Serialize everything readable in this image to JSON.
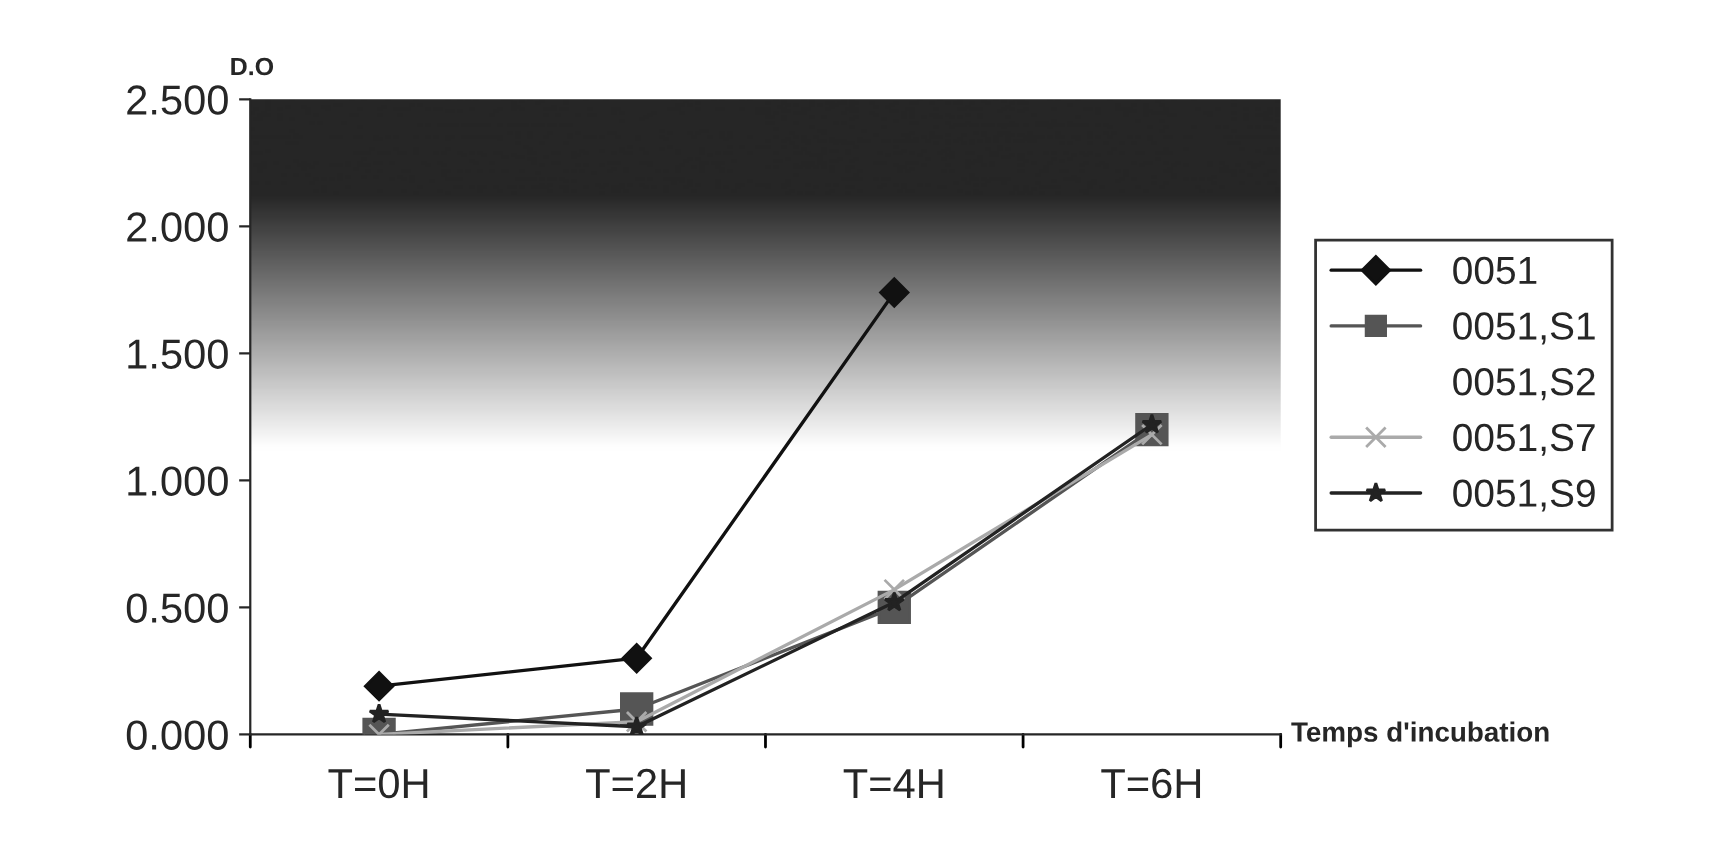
{
  "chart_data": {
    "type": "line",
    "ylabel": "D.O",
    "xlabel": "Temps d'incubation",
    "categories": [
      "T=0H",
      "T=2H",
      "T=4H",
      "T=6H"
    ],
    "series": [
      {
        "name": "0051",
        "color": "#111111",
        "marker": "diamond",
        "values": [
          0.19,
          0.3,
          1.74,
          null
        ]
      },
      {
        "name": "0051,S1",
        "color": "#555555",
        "marker": "square",
        "values": [
          0.0,
          0.1,
          0.5,
          1.2
        ]
      },
      {
        "name": "0051,S2",
        "marker": "none",
        "values": [
          null,
          null,
          null,
          null
        ]
      },
      {
        "name": "0051,S7",
        "color": "#aaaaaa",
        "marker": "cross",
        "values": [
          0.0,
          0.05,
          0.57,
          1.18
        ]
      },
      {
        "name": "0051,S9",
        "color": "#222222",
        "marker": "star",
        "values": [
          0.08,
          0.03,
          0.52,
          1.22
        ]
      }
    ],
    "ylim": [
      0,
      2.5
    ],
    "yticks": [
      {
        "value": 0,
        "label": "0.000"
      },
      {
        "value": 0.5,
        "label": "0.500"
      },
      {
        "value": 1,
        "label": "1.000"
      },
      {
        "value": 1.5,
        "label": "1.500"
      },
      {
        "value": 2,
        "label": "2.000"
      },
      {
        "value": 2.5,
        "label": "2.500"
      }
    ],
    "grid": false,
    "legend": "right",
    "line_style": "solid"
  }
}
